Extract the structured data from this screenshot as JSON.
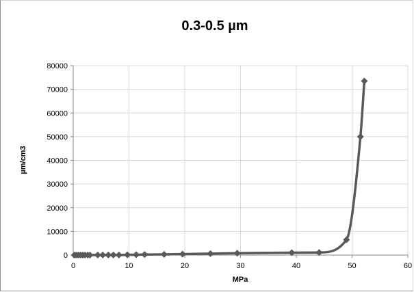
{
  "chart_data": {
    "type": "scatter",
    "title": "0.3-0.5 µm",
    "xlabel": "MPa",
    "ylabel": "µm/cm3",
    "xlim": [
      0,
      60
    ],
    "ylim": [
      0,
      80000
    ],
    "xticks": [
      0,
      10,
      20,
      30,
      40,
      50,
      60
    ],
    "yticks": [
      0,
      10000,
      20000,
      30000,
      40000,
      50000,
      60000,
      70000,
      80000
    ],
    "grid": {
      "x": true,
      "y": true
    },
    "legend": "none",
    "series": [
      {
        "color": "#595959",
        "marker": "diamond",
        "line": "smoothed",
        "x": [
          0.2,
          0.5,
          0.9,
          1.3,
          1.7,
          2.1,
          2.6,
          3.0,
          4.4,
          5.3,
          6.3,
          7.2,
          8.2,
          9.7,
          11.3,
          12.8,
          16.3,
          19.6,
          24.6,
          29.4,
          39.2,
          44.1,
          49.0,
          51.5,
          52.2
        ],
        "values": [
          0,
          0,
          0,
          0,
          0,
          0,
          0,
          0,
          50,
          50,
          50,
          50,
          50,
          100,
          150,
          200,
          300,
          400,
          600,
          800,
          1000,
          1100,
          6500,
          50000,
          73500
        ]
      }
    ]
  }
}
